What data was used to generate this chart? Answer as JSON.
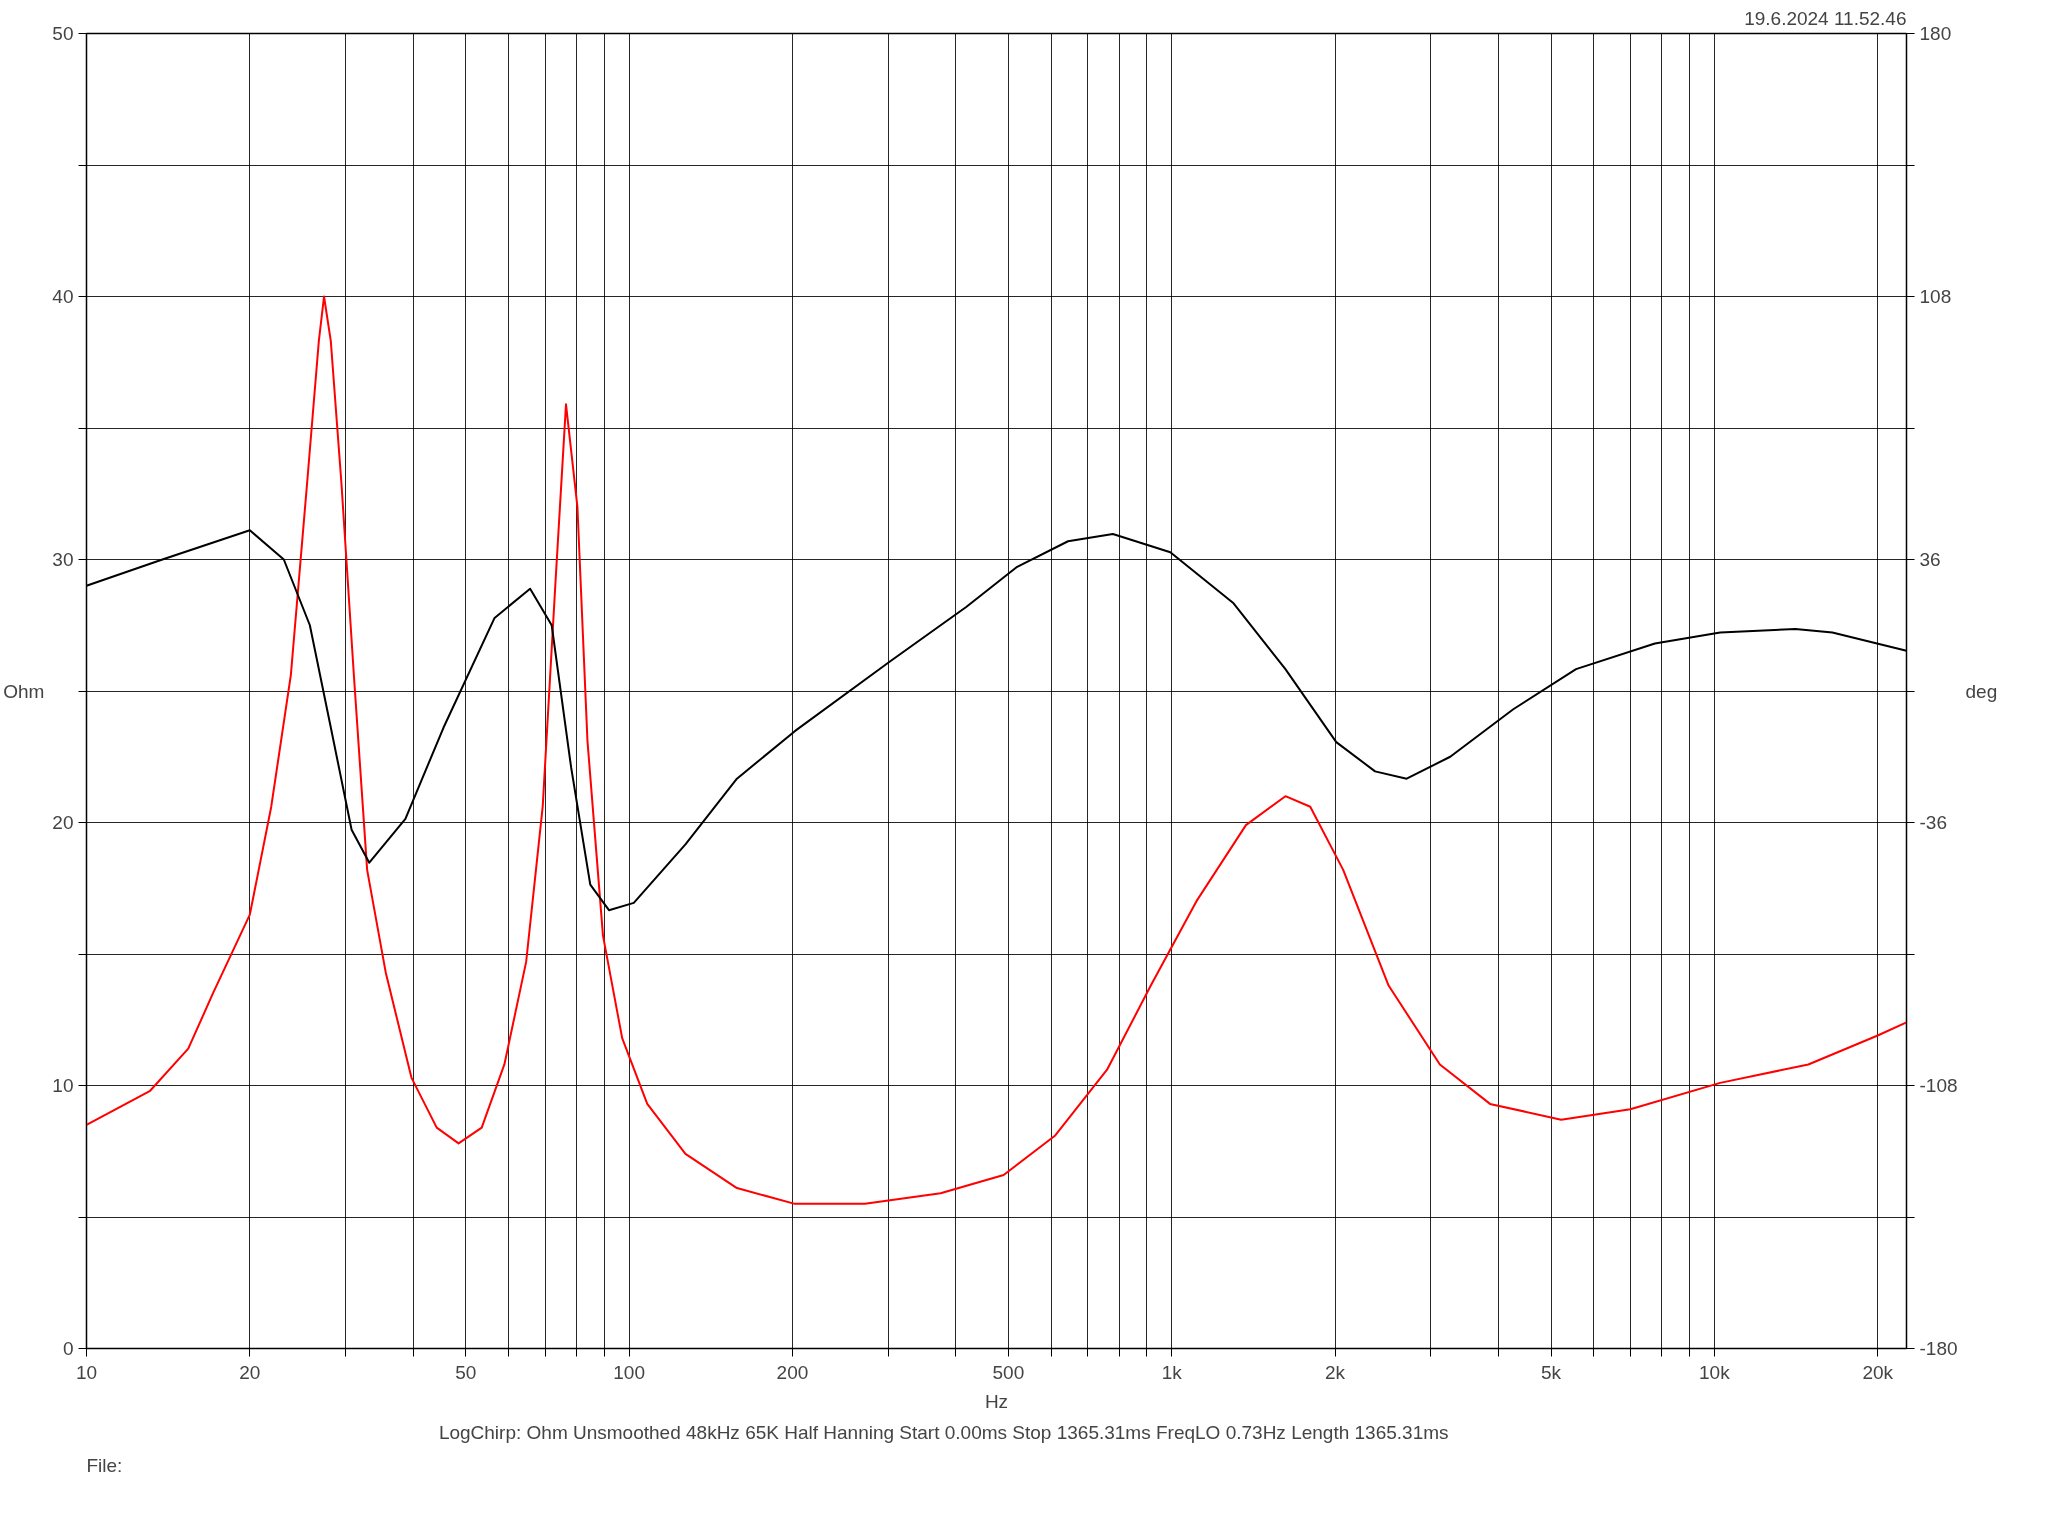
{
  "chart_data": {
    "type": "line",
    "xlabel": "Hz",
    "ylabel": "Ohm",
    "y2label": "deg",
    "annotations": [
      "19.6.2024 11.52.46",
      "LogChirp:  Ohm   Unsmoothed   48kHz   65K   Half Hanning   Start 0.00ms    Stop 1365.31ms    FreqLO 0.73Hz    Length 1365.31ms",
      "File:"
    ],
    "log": "x",
    "grid": true,
    "line_style": "solid",
    "marker": "none",
    "xlim": [
      10,
      22600
    ],
    "ylim": [
      0,
      50
    ],
    "y2lim": [
      -180,
      180
    ],
    "xticks": [
      10,
      20,
      {
        "value": 30,
        "label": null
      },
      {
        "value": 40,
        "label": null
      },
      50,
      {
        "value": 60,
        "label": null
      },
      {
        "value": 70,
        "label": null
      },
      {
        "value": 80,
        "label": null
      },
      {
        "value": 90,
        "label": null
      },
      100,
      200,
      {
        "value": 300,
        "label": null
      },
      {
        "value": 400,
        "label": null
      },
      500,
      {
        "value": 600,
        "label": null
      },
      {
        "value": 700,
        "label": null
      },
      {
        "value": 800,
        "label": null
      },
      {
        "value": 900,
        "label": null
      },
      {
        "value": 1000,
        "label": "1k"
      },
      {
        "value": 2000,
        "label": "2k"
      },
      {
        "value": 3000,
        "label": null
      },
      {
        "value": 4000,
        "label": null
      },
      {
        "value": 5000,
        "label": "5k"
      },
      {
        "value": 6000,
        "label": null
      },
      {
        "value": 7000,
        "label": null
      },
      {
        "value": 8000,
        "label": null
      },
      {
        "value": 9000,
        "label": null
      },
      {
        "value": 10000,
        "label": "10k"
      },
      {
        "value": 20000,
        "label": "20k"
      }
    ],
    "yticks": [
      0,
      {
        "value": 5,
        "label": null
      },
      10,
      {
        "value": 15,
        "label": null
      },
      20,
      {
        "value": 25,
        "label": null
      },
      30,
      {
        "value": 35,
        "label": null
      },
      40,
      {
        "value": 45,
        "label": null
      },
      50
    ],
    "y2ticks": [
      -180,
      {
        "value": -144,
        "label": null
      },
      -108,
      {
        "value": -72,
        "label": null
      },
      -36,
      {
        "value": 0,
        "label": null
      },
      36,
      {
        "value": 72,
        "label": null
      },
      108,
      {
        "value": 144,
        "label": null
      },
      180
    ],
    "series": [
      {
        "color": "#ff0000",
        "x": [
          10,
          13.1,
          15.4,
          17.1,
          20,
          21.9,
          23.8,
          25.5,
          26.8,
          27.4,
          28.2,
          29.5,
          31.1,
          32.9,
          35.6,
          39.7,
          44.2,
          48.5,
          53.5,
          58.9,
          64.6,
          69.3,
          73.1,
          76.5,
          80.3,
          83.8,
          89.5,
          97.1,
          108,
          127,
          158,
          202,
          272,
          375,
          490,
          610,
          760,
          915,
          1110,
          1370,
          1620,
          1800,
          2070,
          2510,
          3120,
          3860,
          5220,
          7000,
          10250,
          14900,
          20000,
          22600
        ],
        "values": [
          8.5,
          9.8,
          11.4,
          13.5,
          16.5,
          20.6,
          25.6,
          32.9,
          38.3,
          40.0,
          38.3,
          32.9,
          25.6,
          18.2,
          14.3,
          10.3,
          8.4,
          7.8,
          8.4,
          10.8,
          14.7,
          20.6,
          29.0,
          35.9,
          32.0,
          23.1,
          15.7,
          11.8,
          9.3,
          7.4,
          6.1,
          5.5,
          5.5,
          5.9,
          6.6,
          8.1,
          10.6,
          13.8,
          17.0,
          19.9,
          21.0,
          20.6,
          18.2,
          13.8,
          10.8,
          9.3,
          8.7,
          9.1,
          10.1,
          10.8,
          11.9,
          12.4
        ]
      },
      {
        "color": "#000000",
        "axis": "y2",
        "x": [
          10,
          13.8,
          20,
          23.1,
          25.8,
          28.2,
          30.8,
          33.2,
          38.7,
          45.5,
          56.5,
          65.7,
          72.0,
          78.2,
          84.8,
          91.8,
          102,
          127,
          158,
          202,
          302,
          418,
          519,
          644,
          779,
          994,
          1300,
          1620,
          2010,
          2370,
          2710,
          3260,
          4260,
          5560,
          7770,
          10250,
          14100,
          16500,
          22600
        ],
        "values": [
          28.8,
          36,
          44,
          36,
          18,
          -10,
          -38,
          -47,
          -35,
          -10,
          20,
          28,
          18,
          -21,
          -53,
          -60,
          -58,
          -42,
          -24,
          -11,
          8,
          23,
          34,
          41,
          43,
          38,
          24,
          6,
          -14,
          -22,
          -24,
          -18,
          -5,
          6,
          13,
          16,
          17,
          16,
          11
        ]
      }
    ]
  }
}
